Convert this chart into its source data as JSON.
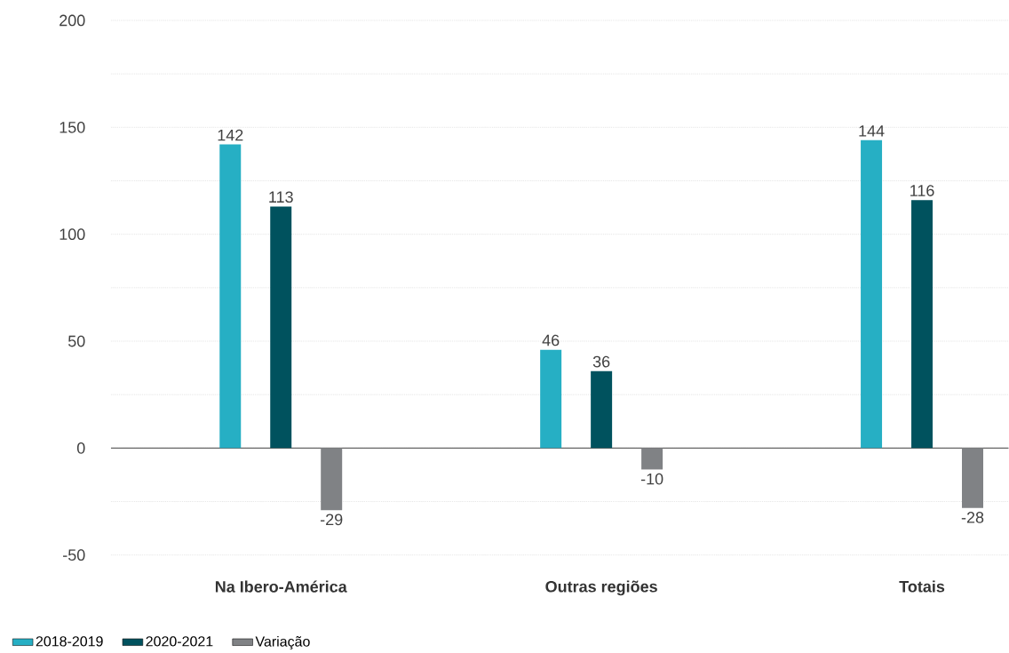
{
  "chart_data": {
    "type": "bar",
    "categories": [
      "Na Ibero-América",
      "Outras regiões",
      "Totais"
    ],
    "series": [
      {
        "name": "2018-2019",
        "color": "#26afc4",
        "values": [
          142,
          46,
          144
        ]
      },
      {
        "name": "2020-2021",
        "color": "#00525e",
        "values": [
          113,
          36,
          116
        ]
      },
      {
        "name": "Variação",
        "color": "#808285",
        "values": [
          -29,
          -10,
          -28
        ]
      }
    ],
    "ylim": [
      -50,
      200
    ],
    "yticks": [
      -50,
      {
        "value": -25,
        "label": null
      },
      0,
      {
        "value": 25,
        "label": null
      },
      50,
      {
        "value": 75,
        "label": null
      },
      100,
      {
        "value": 125,
        "label": null
      },
      150,
      {
        "value": 175,
        "label": null
      },
      200
    ],
    "grid": "y",
    "legend": "bottom left",
    "data_labels": true
  }
}
